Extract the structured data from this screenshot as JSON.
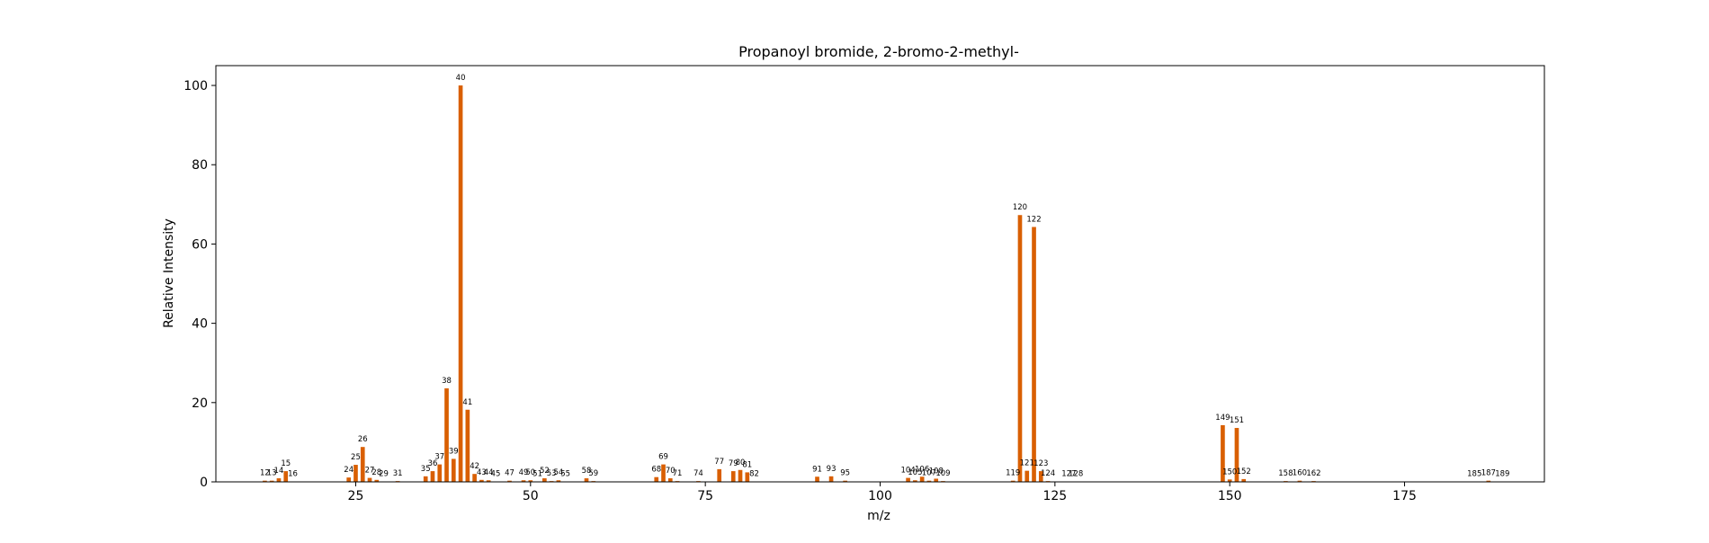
{
  "chart_data": {
    "type": "bar",
    "title": "Propanoyl bromide, 2-bromo-2-methyl-",
    "xlabel": "m/z",
    "ylabel": "Relative Intensity",
    "xlim": [
      5,
      195
    ],
    "ylim": [
      0,
      105
    ],
    "xticks": [
      25,
      50,
      75,
      100,
      125,
      150,
      175
    ],
    "yticks": [
      0,
      20,
      40,
      60,
      80,
      100
    ],
    "grid": false,
    "bar_color": "#d95f02",
    "series": [
      {
        "x": [
          12,
          13,
          14,
          15,
          16,
          24,
          25,
          26,
          27,
          28,
          29,
          31,
          35,
          36,
          37,
          38,
          39,
          40,
          41,
          42,
          43,
          44,
          45,
          47,
          49,
          50,
          51,
          52,
          53,
          54,
          55,
          58,
          59,
          68,
          69,
          70,
          71,
          74,
          77,
          79,
          80,
          81,
          82,
          91,
          93,
          95,
          104,
          105,
          106,
          107,
          108,
          109,
          119,
          120,
          121,
          122,
          123,
          124,
          127,
          128,
          149,
          150,
          151,
          152,
          158,
          160,
          162,
          185,
          187,
          189
        ],
        "values": [
          0.3,
          0.3,
          0.9,
          2.7,
          0.1,
          1.1,
          4.3,
          8.8,
          1.0,
          0.5,
          0.1,
          0.2,
          1.4,
          2.7,
          4.4,
          23.6,
          5.8,
          100,
          18.2,
          2.0,
          0.5,
          0.4,
          0.1,
          0.3,
          0.4,
          0.4,
          0.1,
          0.9,
          0.2,
          0.4,
          0.1,
          0.9,
          0.2,
          1.2,
          4.4,
          0.9,
          0.2,
          0.2,
          3.2,
          2.7,
          3.0,
          2.4,
          0.1,
          1.3,
          1.4,
          0.3,
          1.0,
          0.4,
          1.3,
          0.3,
          0.8,
          0.2,
          0.3,
          67.3,
          2.8,
          64.3,
          2.7,
          0.2,
          0.1,
          0.1,
          14.3,
          0.6,
          13.6,
          0.7,
          0.2,
          0.3,
          0.2,
          0.1,
          0.3,
          0.1
        ]
      }
    ]
  }
}
